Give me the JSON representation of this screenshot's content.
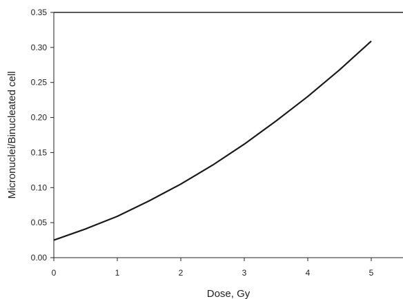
{
  "chart_data": {
    "type": "line",
    "title": "",
    "xlabel": "Dose, Gy",
    "ylabel": "Micronuclei/Binucleated cell",
    "xlim": [
      0,
      5.5
    ],
    "ylim": [
      0,
      0.35
    ],
    "x_ticks": [
      0,
      1,
      2,
      3,
      4,
      5
    ],
    "x_tick_labels": [
      "0",
      "1",
      "2",
      "3",
      "4",
      "5"
    ],
    "y_ticks": [
      0,
      0.05,
      0.1,
      0.15,
      0.2,
      0.25,
      0.3,
      0.35
    ],
    "y_tick_labels": [
      "0.00",
      "0.05",
      "0.10",
      "0.15",
      "0.20",
      "0.25",
      "0.30",
      "0.35"
    ],
    "grid": false,
    "legend": "none",
    "series": [
      {
        "color": "#1a1a1a",
        "x": [
          0,
          0.5,
          1,
          1.5,
          2,
          2.5,
          3,
          3.5,
          4,
          4.5,
          5
        ],
        "values": [
          0.025,
          0.041,
          0.059,
          0.081,
          0.105,
          0.132,
          0.162,
          0.195,
          0.23,
          0.268,
          0.309
        ]
      }
    ]
  }
}
